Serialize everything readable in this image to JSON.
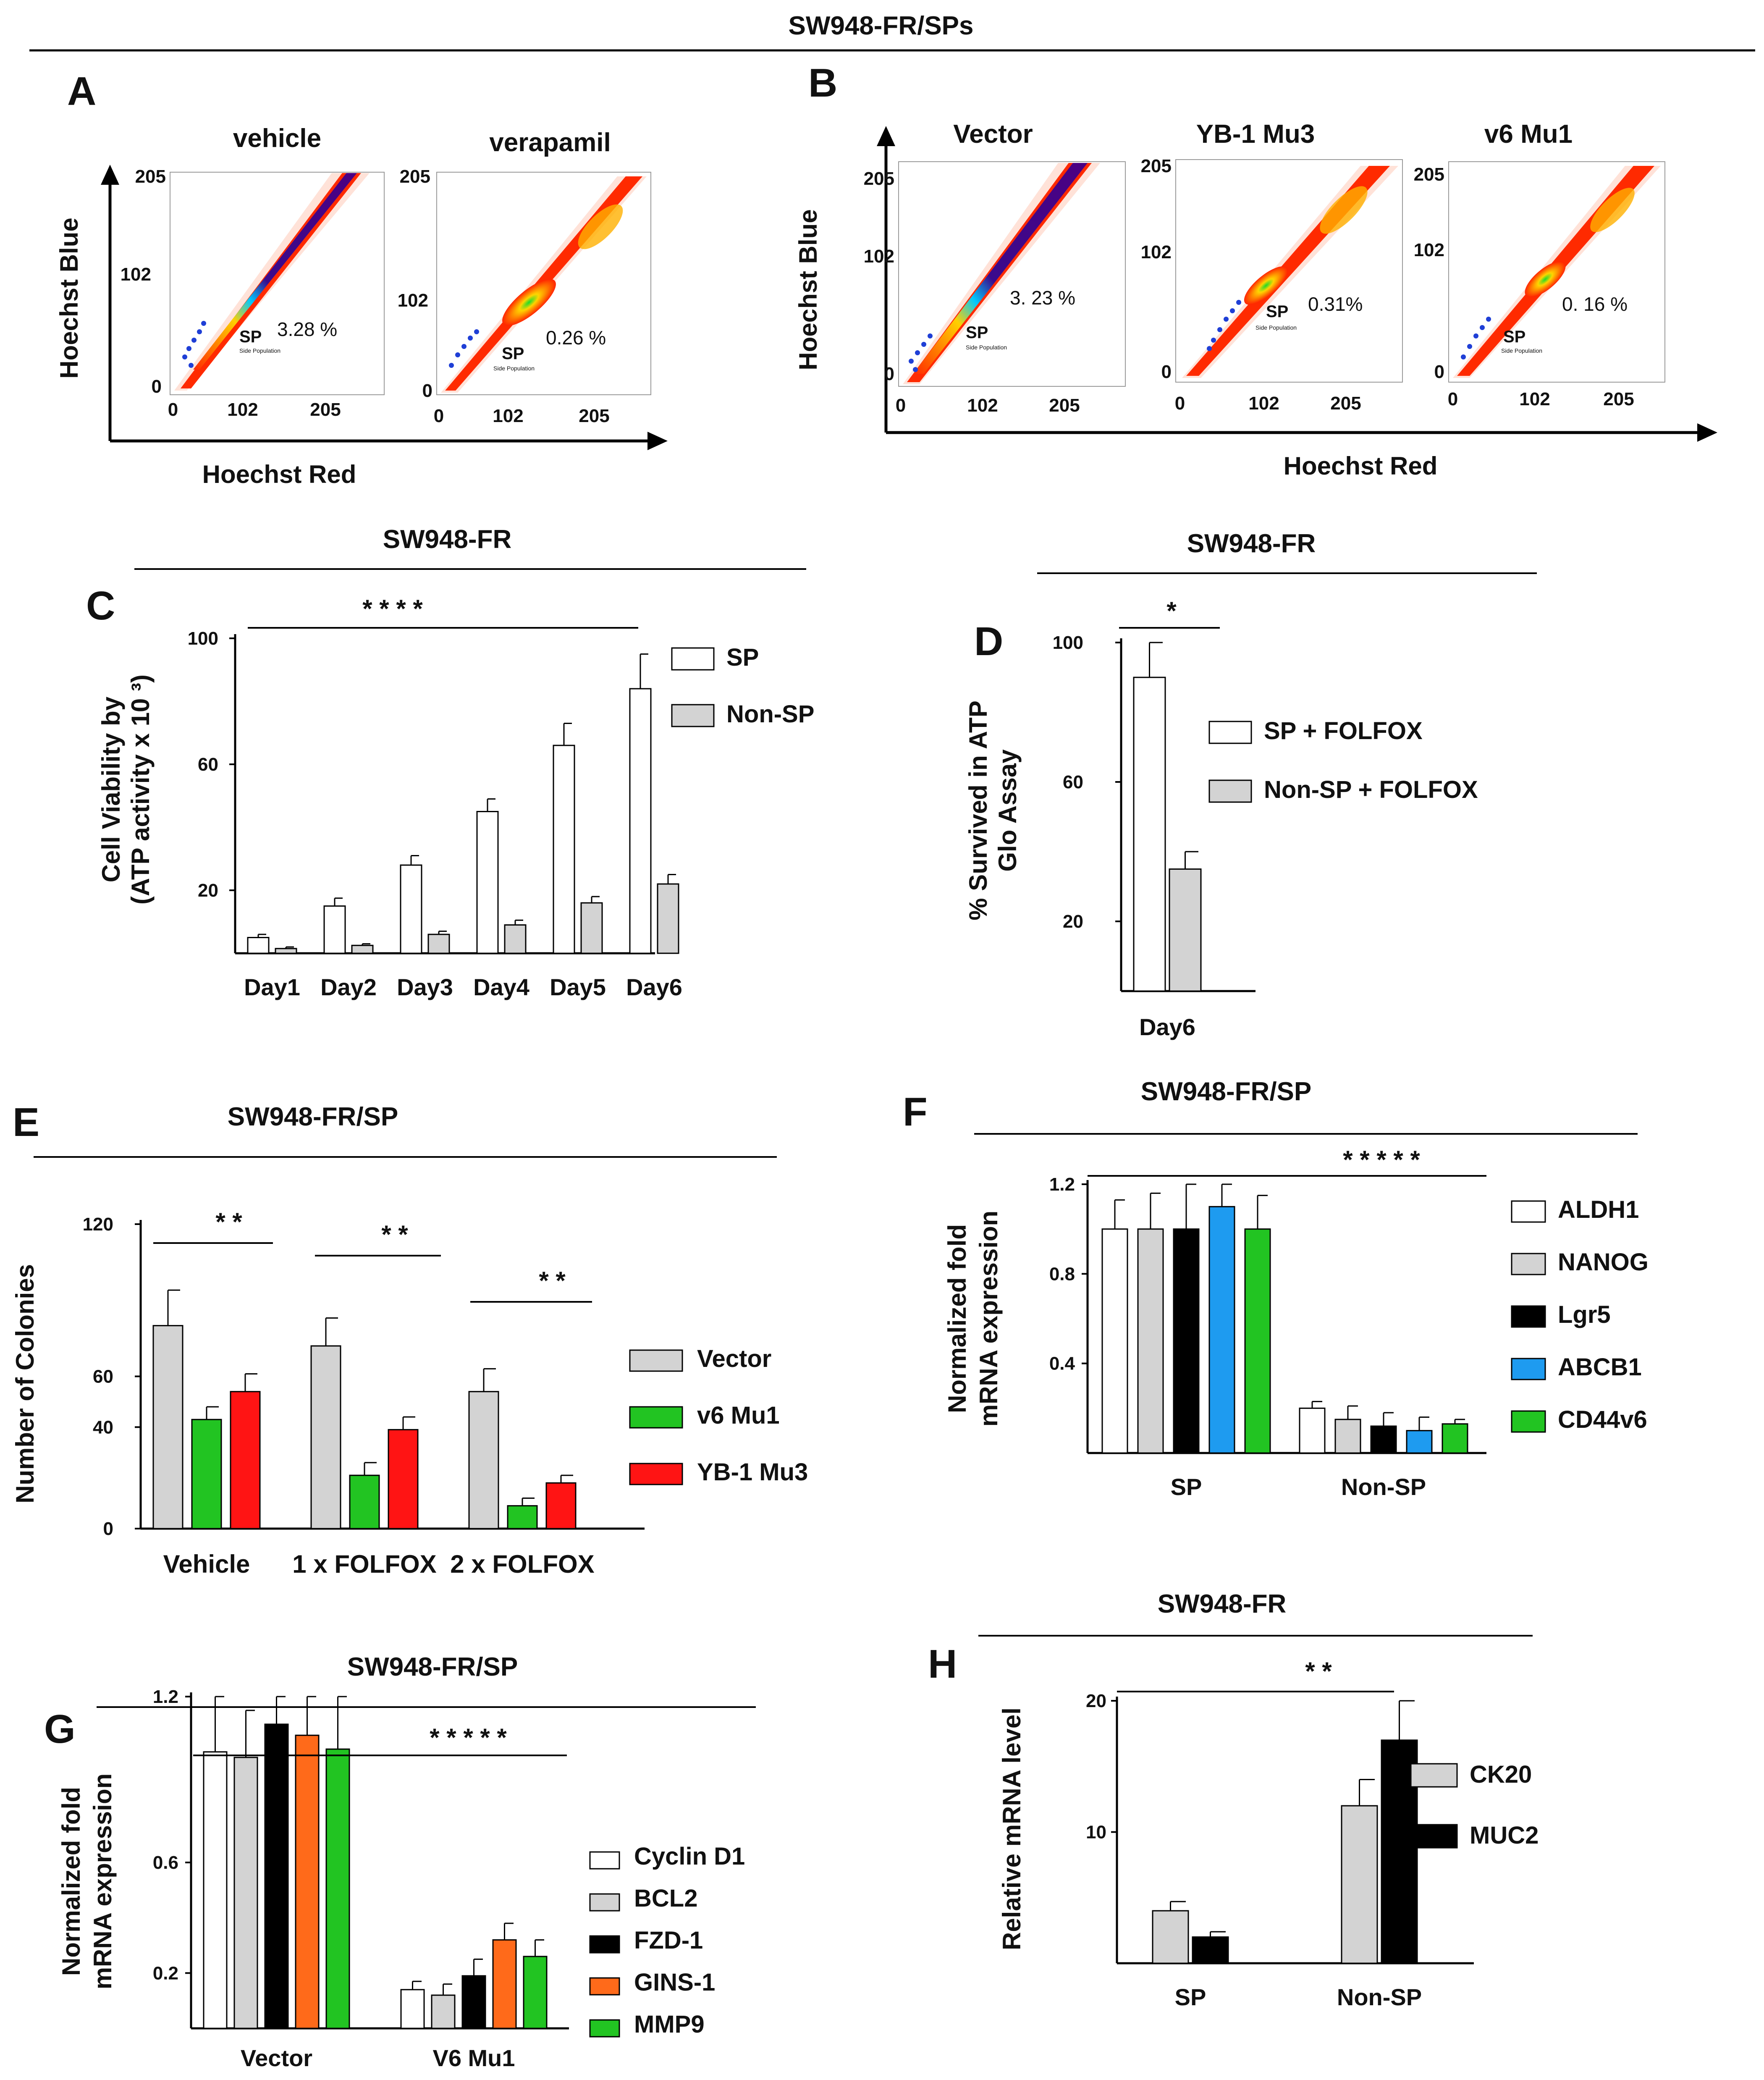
{
  "figure_title": "SW948-FR/SPs",
  "chart_data": [
    {
      "panel": "A",
      "type": "scatter",
      "description": "flow cytometry side-population density plots",
      "xlabel": "Hoechst Red",
      "ylabel": "Hoechst Blue",
      "plots": [
        {
          "title": "vehicle",
          "sp_percent": "3.28 %",
          "x_ticks": [
            "0",
            "102",
            "205"
          ],
          "y_ticks": [
            "205",
            "102",
            "0"
          ],
          "gate_label": "SP",
          "gate_sublabel": "Side Population"
        },
        {
          "title": "verapamil",
          "sp_percent": "0.26 %",
          "x_ticks": [
            "0",
            "102",
            "205"
          ],
          "y_ticks": [
            "205",
            "102",
            "0"
          ],
          "gate_label": "SP",
          "gate_sublabel": "Side Population"
        }
      ]
    },
    {
      "panel": "B",
      "type": "scatter",
      "description": "flow cytometry side-population density plots",
      "xlabel": "Hoechst Red",
      "ylabel": "Hoechst Blue",
      "plots": [
        {
          "title": "Vector",
          "sp_percent": "3. 23 %",
          "x_ticks": [
            "0",
            "102",
            "205"
          ],
          "y_ticks": [
            "205",
            "102",
            "0"
          ],
          "gate_label": "SP",
          "gate_sublabel": "Side Population"
        },
        {
          "title": "YB-1  Mu3",
          "sp_percent": "0.31%",
          "x_ticks": [
            "0",
            "102",
            "205"
          ],
          "y_ticks": [
            "205",
            "102",
            "0"
          ],
          "gate_label": "SP",
          "gate_sublabel": "Side Population"
        },
        {
          "title": "v6 Mu1",
          "sp_percent": "0. 16 %",
          "x_ticks": [
            "0",
            "102",
            "205"
          ],
          "y_ticks": [
            "205",
            "102",
            "0"
          ],
          "gate_label": "SP",
          "gate_sublabel": "Side Population"
        }
      ]
    },
    {
      "panel": "C",
      "type": "bar",
      "header": "SW948-FR",
      "ylabel_lines": [
        "Cell Viability by",
        "(ATP  activity x 10 ³)"
      ],
      "categories": [
        "Day1",
        "Day2",
        "Day3",
        "Day4",
        "Day5",
        "Day6"
      ],
      "series": [
        {
          "name": "SP",
          "color": "#ffffff",
          "values": [
            5,
            15,
            28,
            45,
            66,
            84
          ],
          "errors": [
            1,
            2.5,
            3,
            4,
            7,
            11
          ]
        },
        {
          "name": "Non-SP",
          "color": "#d3d3d3",
          "values": [
            1.5,
            2.5,
            6,
            9,
            16,
            22
          ],
          "errors": [
            0.5,
            0.5,
            1,
            1.5,
            2,
            3
          ]
        }
      ],
      "ylim": [
        0,
        100
      ],
      "y_ticks": [
        20,
        60,
        100
      ],
      "significance": "* * * *"
    },
    {
      "panel": "D",
      "type": "bar",
      "header": "SW948-FR",
      "ylabel_lines": [
        "% Survived in ATP",
        "Glo Assay"
      ],
      "categories": [
        "Day6"
      ],
      "series": [
        {
          "name": "SP + FOLFOX",
          "color": "#ffffff",
          "values": [
            90
          ],
          "errors": [
            10
          ]
        },
        {
          "name": "Non-SP  +  FOLFOX",
          "color": "#d3d3d3",
          "values": [
            35
          ],
          "errors": [
            5
          ]
        }
      ],
      "ylim": [
        0,
        100
      ],
      "y_ticks": [
        20,
        60,
        100
      ],
      "significance": "*"
    },
    {
      "panel": "E",
      "type": "bar",
      "header": "SW948-FR/SP",
      "ylabel": "Number of Colonies",
      "categories": [
        "Vehicle",
        "1 x FOLFOX",
        "2 x FOLFOX"
      ],
      "series": [
        {
          "name": "Vector",
          "color": "#d3d3d3",
          "values": [
            80,
            72,
            54
          ],
          "errors": [
            14,
            11,
            9
          ]
        },
        {
          "name": "v6 Mu1",
          "color": "#22c422",
          "values": [
            43,
            21,
            9
          ],
          "errors": [
            5,
            5,
            3
          ]
        },
        {
          "name": "YB-1 Mu3",
          "color": "#ff1414",
          "values": [
            54,
            39,
            18
          ],
          "errors": [
            7,
            5,
            3
          ]
        }
      ],
      "ylim": [
        0,
        120
      ],
      "y_ticks": [
        0,
        40,
        60,
        120
      ],
      "significance": [
        "* *",
        "* *",
        "* *"
      ]
    },
    {
      "panel": "F",
      "type": "bar",
      "header": "SW948-FR/SP",
      "ylabel_lines": [
        "Normalized fold",
        "mRNA expression"
      ],
      "categories": [
        "SP",
        "Non-SP"
      ],
      "series": [
        {
          "name": "ALDH1",
          "color": "#ffffff",
          "values": [
            1.0,
            0.2
          ],
          "errors": [
            0.13,
            0.03
          ]
        },
        {
          "name": "NANOG",
          "color": "#d3d3d3",
          "values": [
            1.0,
            0.15
          ],
          "errors": [
            0.16,
            0.06
          ]
        },
        {
          "name": "Lgr5",
          "color": "#000000",
          "values": [
            1.0,
            0.12
          ],
          "errors": [
            0.2,
            0.06
          ]
        },
        {
          "name": "ABCB1",
          "color": "#1e9bf0",
          "values": [
            1.1,
            0.1
          ],
          "errors": [
            0.1,
            0.06
          ]
        },
        {
          "name": "CD44v6",
          "color": "#22c422",
          "values": [
            1.0,
            0.13
          ],
          "errors": [
            0.15,
            0.02
          ]
        }
      ],
      "ylim": [
        0,
        1.2
      ],
      "y_ticks": [
        0.4,
        0.8,
        1.2
      ],
      "significance": "* * * * *"
    },
    {
      "panel": "G",
      "type": "bar",
      "header": "SW948-FR/SP",
      "ylabel_lines": [
        "Normalized fold",
        "mRNA expression"
      ],
      "categories": [
        "Vector",
        "V6 Mu1"
      ],
      "series": [
        {
          "name": "Cyclin  D1",
          "color": "#ffffff",
          "values": [
            1.0,
            0.14
          ],
          "errors": [
            0.2,
            0.03
          ]
        },
        {
          "name": "BCL2",
          "color": "#d3d3d3",
          "values": [
            0.98,
            0.12
          ],
          "errors": [
            0.17,
            0.04
          ]
        },
        {
          "name": "FZD-1",
          "color": "#000000",
          "values": [
            1.1,
            0.19
          ],
          "errors": [
            0.1,
            0.06
          ]
        },
        {
          "name": "GINS-1",
          "color": "#ff6a1a",
          "values": [
            1.06,
            0.32
          ],
          "errors": [
            0.14,
            0.06
          ]
        },
        {
          "name": "MMP9",
          "color": "#22c422",
          "values": [
            1.01,
            0.26
          ],
          "errors": [
            0.19,
            0.06
          ]
        }
      ],
      "ylim": [
        0,
        1.2
      ],
      "y_ticks": [
        0.2,
        0.6,
        1.2
      ],
      "significance": "* * * * *"
    },
    {
      "panel": "H",
      "type": "bar",
      "header": "SW948-FR",
      "ylabel": "Relative mRNA level",
      "categories": [
        "SP",
        "Non-SP"
      ],
      "series": [
        {
          "name": "CK20",
          "color": "#d3d3d3",
          "values": [
            4,
            12
          ],
          "errors": [
            0.7,
            2
          ]
        },
        {
          "name": "MUC2",
          "color": "#000000",
          "values": [
            2,
            17
          ],
          "errors": [
            0.4,
            3
          ]
        }
      ],
      "ylim": [
        0,
        20
      ],
      "y_ticks": [
        10,
        20
      ],
      "significance": "*   *"
    }
  ]
}
